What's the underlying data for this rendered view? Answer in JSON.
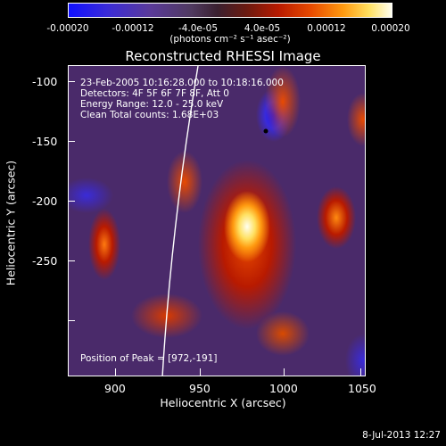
{
  "colorbar": {
    "ticks": [
      "-0.00020",
      "-0.00012",
      "-4.0e-05",
      "4.0e-05",
      "0.00012",
      "0.00020"
    ],
    "unit": "(photons cm⁻² s⁻¹ asec⁻²)"
  },
  "title": "Reconstructed RHESSI Image",
  "overlay": {
    "line1": "23-Feb-2005 10:16:28.000 to 10:18:16.000",
    "line2": "Detectors: 4F 5F 6F 7F 8F, Att 0",
    "line3": "Energy Range: 12.0 - 25.0 keV",
    "line4": "Clean     Total counts: 1.68E+03",
    "peak": "Position of Peak = [972,-191]"
  },
  "axes": {
    "xlabel": "Heliocentric X (arcsec)",
    "ylabel": "Heliocentric Y (arcsec)",
    "xticks": [
      "900",
      "950",
      "1000",
      "1050"
    ],
    "yticks": [
      "-100",
      "-150",
      "-200",
      "-250"
    ]
  },
  "footer": {
    "date": "8-Jul-2013 12:27"
  }
}
